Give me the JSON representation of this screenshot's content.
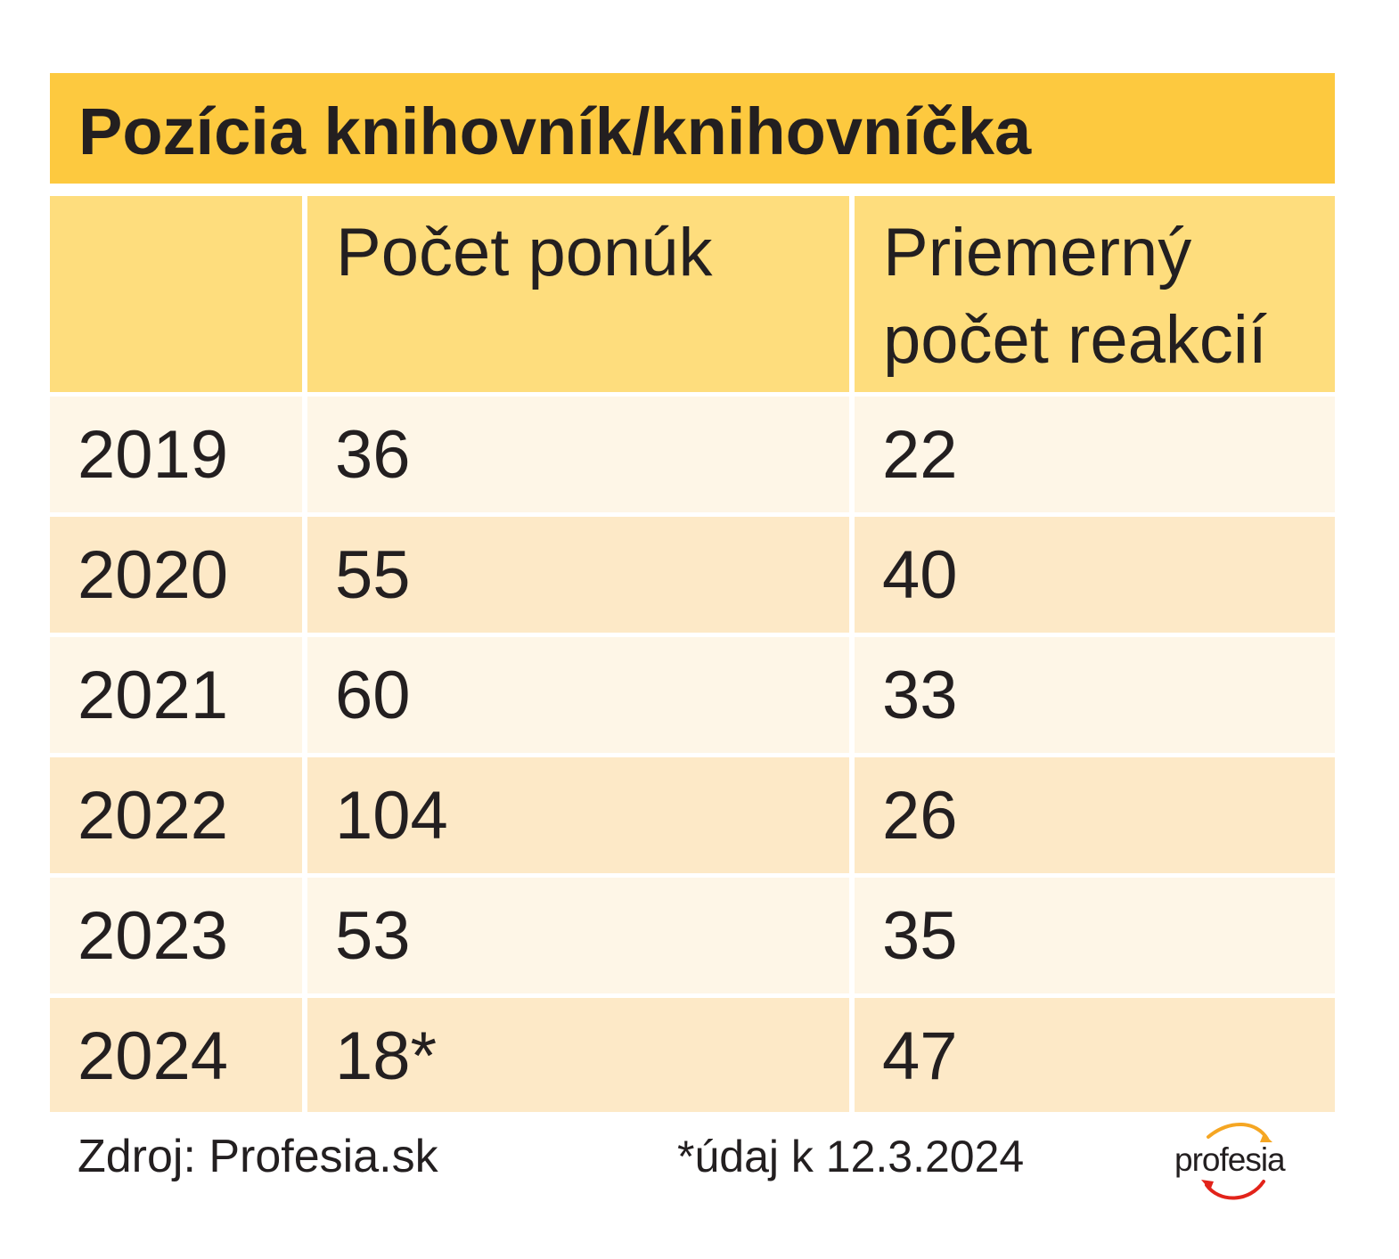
{
  "title": "Pozícia knihovník/knihovníčka",
  "chart_data": {
    "type": "table",
    "columns": [
      "",
      "Počet ponúk",
      "Priemerný počet reakcií"
    ],
    "rows": [
      {
        "year": "2019",
        "offers": "36",
        "reactions": "22"
      },
      {
        "year": "2020",
        "offers": "55",
        "reactions": "40"
      },
      {
        "year": "2021",
        "offers": "60",
        "reactions": "33"
      },
      {
        "year": "2022",
        "offers": "104",
        "reactions": "26"
      },
      {
        "year": "2023",
        "offers": "53",
        "reactions": "35"
      },
      {
        "year": "2024",
        "offers": "18*",
        "reactions": "47"
      }
    ]
  },
  "footer": {
    "source": "Zdroj: Profesia.sk",
    "note": "*údaj k 12.3.2024",
    "logo_text": "profesia"
  },
  "colors": {
    "title_bg": "#fdc93f",
    "header_bg": "#fedd7d",
    "row_light": "#fef6e7",
    "row_dark": "#fde9c7",
    "logo_arc_top": "#f5a623",
    "logo_arc_bottom": "#e2231a"
  }
}
